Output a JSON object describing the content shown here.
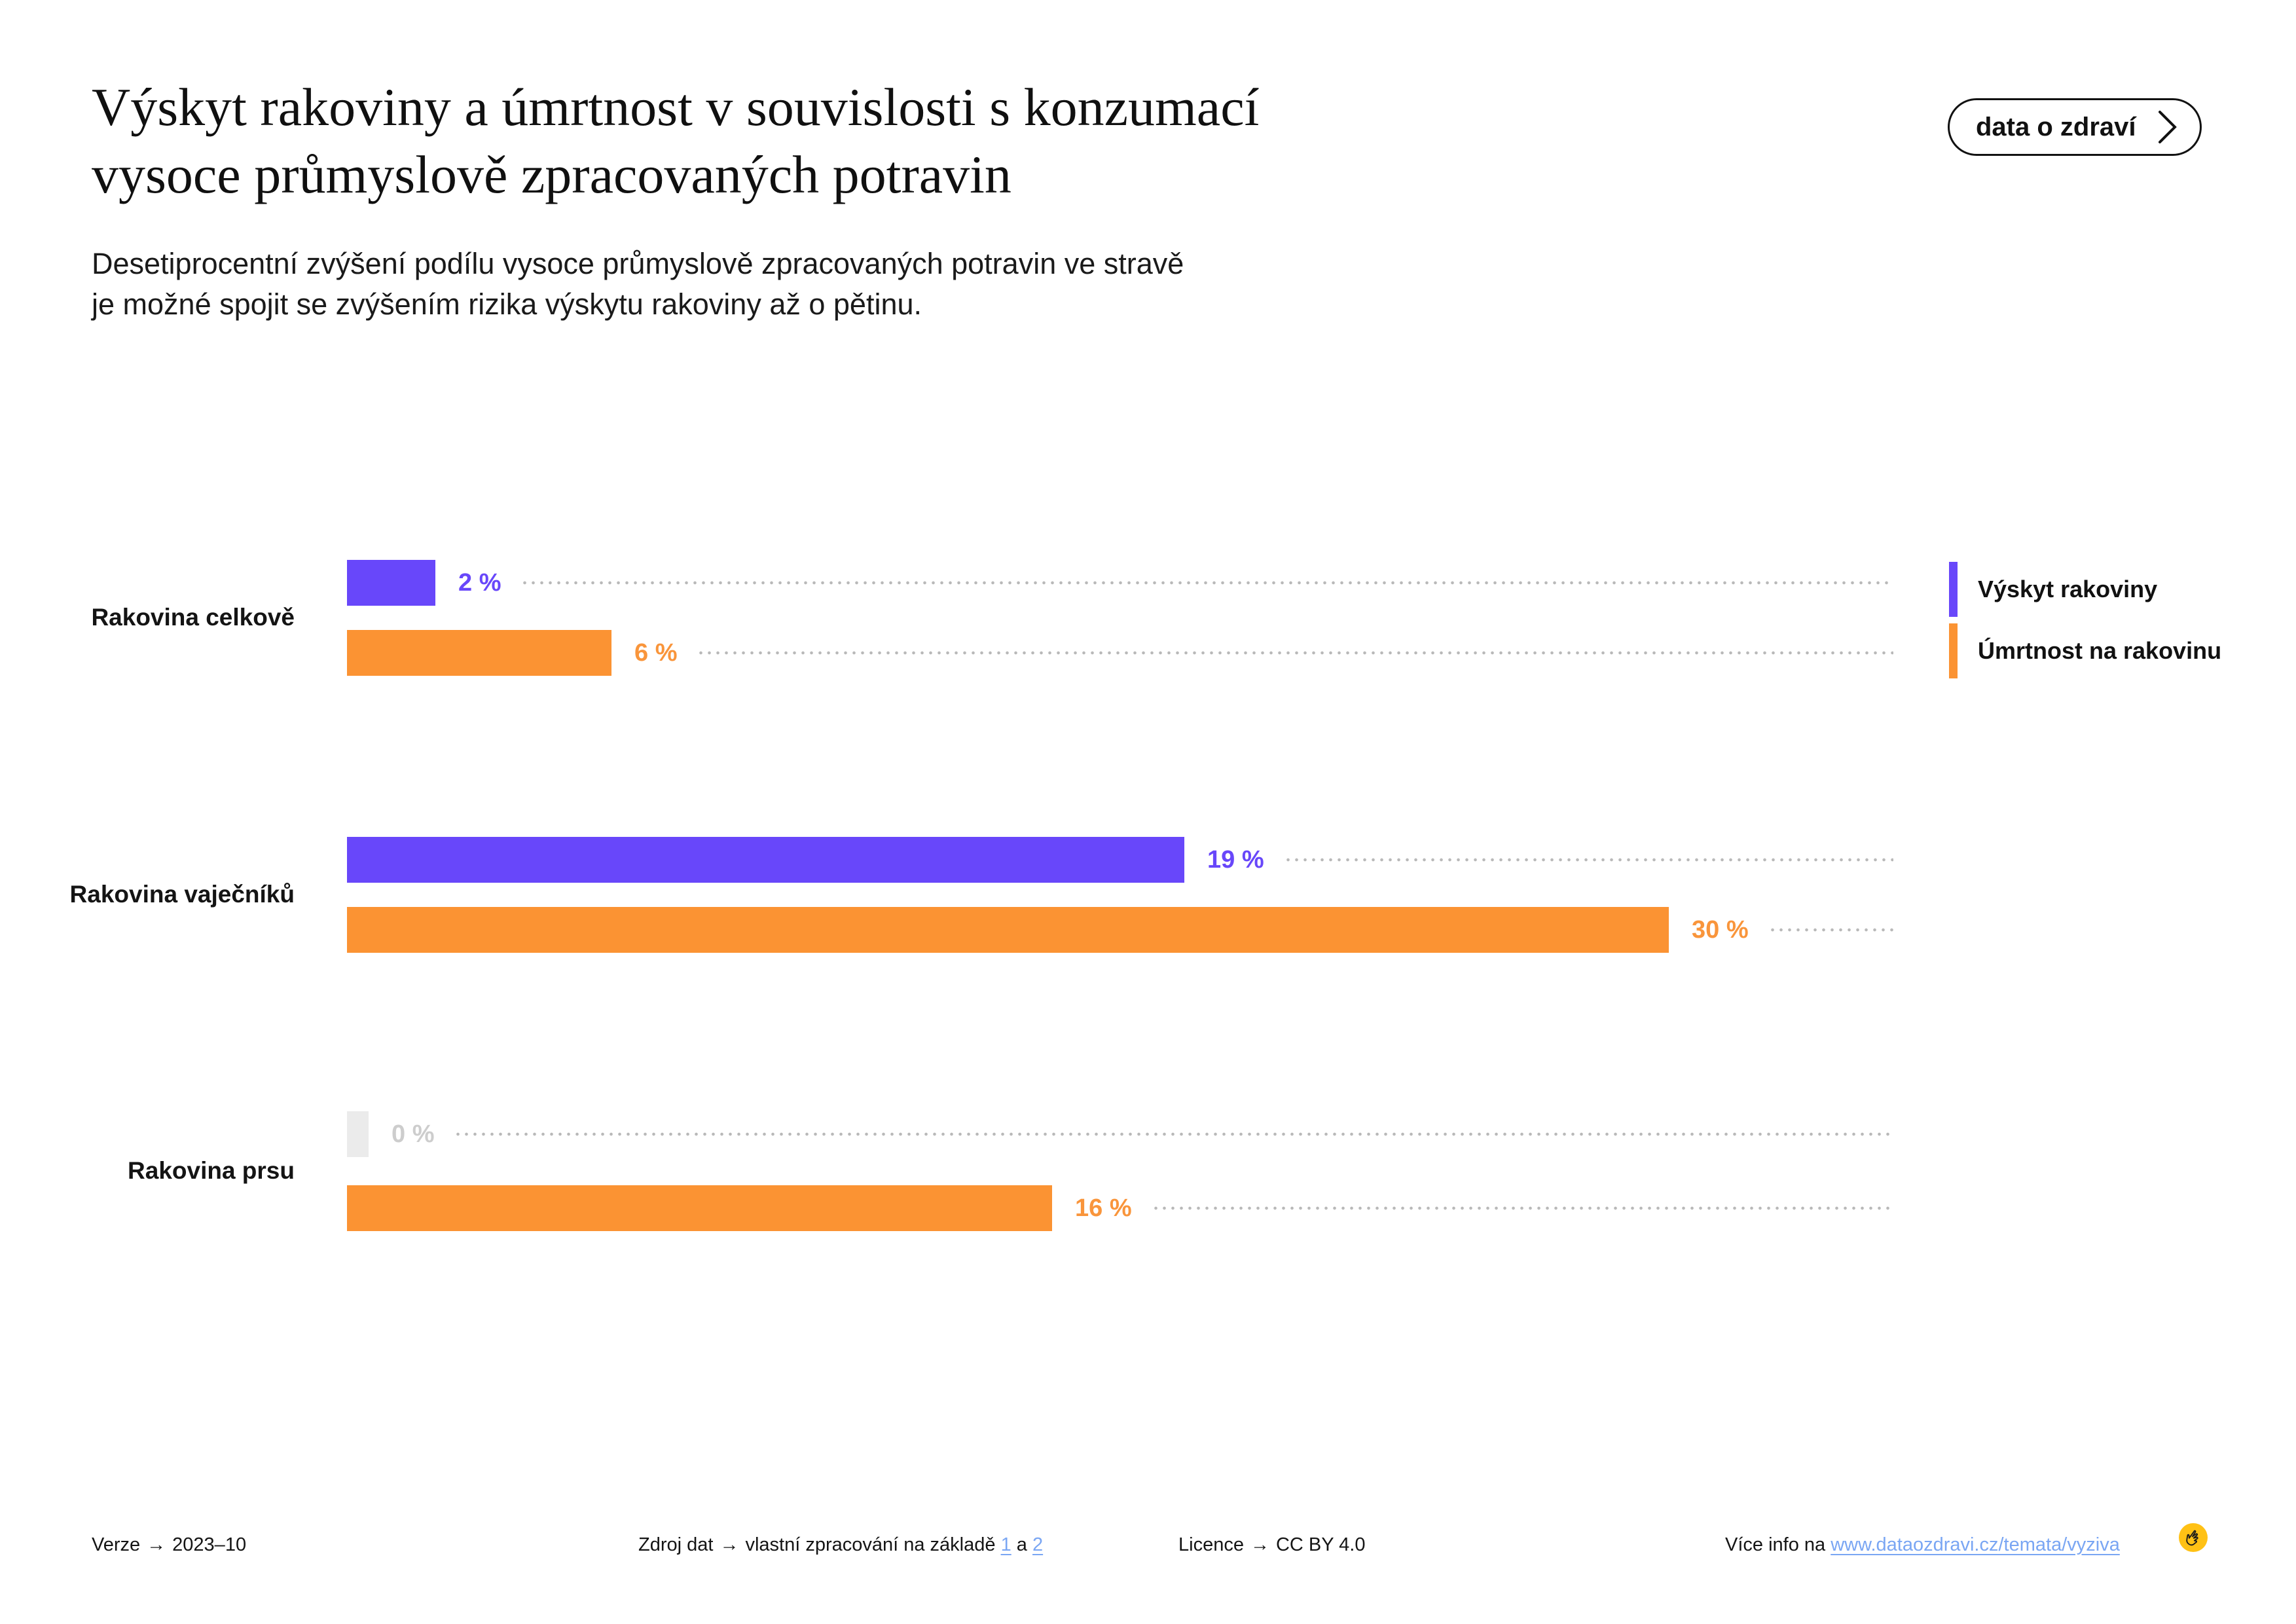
{
  "header": {
    "title_lines": [
      "Výskyt rakoviny a úmrtnost v souvislosti s konzumací",
      "vysoce průmyslově zpracovaných potravin"
    ],
    "subtitle_lines": [
      "Desetiprocentní zvýšení podílu vysoce průmyslově zpracovaných potravin ve stravě",
      "je možné spojit se zvýšením rizika výskytu rakoviny až o pětinu."
    ],
    "button_label": "data o zdraví"
  },
  "chart": {
    "rows": [
      {
        "label": "Rakovina celkově",
        "bars": [
          {
            "value": 2,
            "label": "2 %",
            "color": "#6847fa",
            "label_color": "#6847fa"
          },
          {
            "value": 6,
            "label": "6 %",
            "color": "#fb9333",
            "label_color": "#f9953b"
          }
        ]
      },
      {
        "label": "Rakovina vaječníků",
        "bars": [
          {
            "value": 19,
            "label": "19 %",
            "color": "#6847fa",
            "label_color": "#6847fa"
          },
          {
            "value": 30,
            "label": "30 %",
            "color": "#fb9333",
            "label_color": "#f9953b"
          }
        ]
      },
      {
        "label": "Rakovina prsu",
        "bars": [
          {
            "value": 0,
            "label": "0 %",
            "color": "#ebebeb",
            "label_color": "#cdcdcd"
          },
          {
            "value": 16,
            "label": "16 %",
            "color": "#fb9333",
            "label_color": "#f9953b"
          }
        ]
      }
    ]
  },
  "legend": {
    "items": [
      {
        "label": "Výskyt rakoviny",
        "color": "#6847fa"
      },
      {
        "label": "Úmrtnost na rakovinu",
        "color": "#fb9333"
      }
    ]
  },
  "footer": {
    "version_label": "Verze",
    "version_value": "2023–10",
    "source_label": "Zdroj dat",
    "source_text": "vlastní zpracování na základě",
    "source_link_1": "1",
    "source_conjunction": "a",
    "source_link_2": "2",
    "license_label": "Licence",
    "license_value": "CC BY 4.0",
    "info_prefix": "Více info na",
    "info_link": "www.dataozdravi.cz/temata/vyziva",
    "arrow": "→"
  },
  "chart_data": {
    "type": "bar",
    "orientation": "horizontal",
    "title": "Výskyt rakoviny a úmrtnost v souvislosti s konzumací vysoce průmyslově zpracovaných potravin",
    "subtitle": "Desetiprocentní zvýšení podílu vysoce průmyslově zpracovaných potravin ve stravě je možné spojit se zvýšením rizika výskytu rakoviny až o pětinu.",
    "categories": [
      "Rakovina celkově",
      "Rakovina vaječníků",
      "Rakovina prsu"
    ],
    "series": [
      {
        "name": "Výskyt rakoviny",
        "color": "#6847fa",
        "values": [
          2,
          19,
          0
        ]
      },
      {
        "name": "Úmrtnost na rakovinu",
        "color": "#fb9333",
        "values": [
          6,
          30,
          16
        ]
      }
    ],
    "unit": "%",
    "xlim": [
      0,
      35
    ],
    "grid": false,
    "legend_position": "right",
    "value_labels_shown": true
  }
}
